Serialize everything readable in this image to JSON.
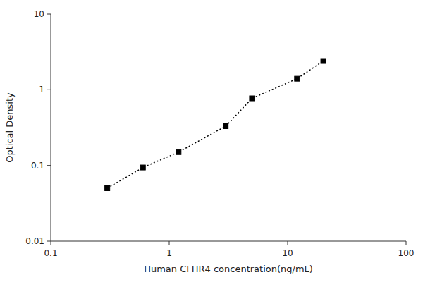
{
  "chart_data": {
    "type": "line",
    "x": [
      0.3,
      0.6,
      1.2,
      3.0,
      5.0,
      12.0,
      20.0
    ],
    "values": [
      0.05,
      0.094,
      0.15,
      0.33,
      0.77,
      1.4,
      2.4
    ],
    "x_label": "Human CFHR4 concentration(ng/mL)",
    "y_label": "Optical Density",
    "xlim": [
      0.1,
      100
    ],
    "ylim": [
      0.01,
      10
    ],
    "xticks": [
      0.1,
      1,
      10,
      100
    ],
    "yticks": [
      0.01,
      0.1,
      1,
      10
    ],
    "log": true,
    "grid": false,
    "color": "black",
    "marker": "square",
    "line_style": "dotted"
  }
}
